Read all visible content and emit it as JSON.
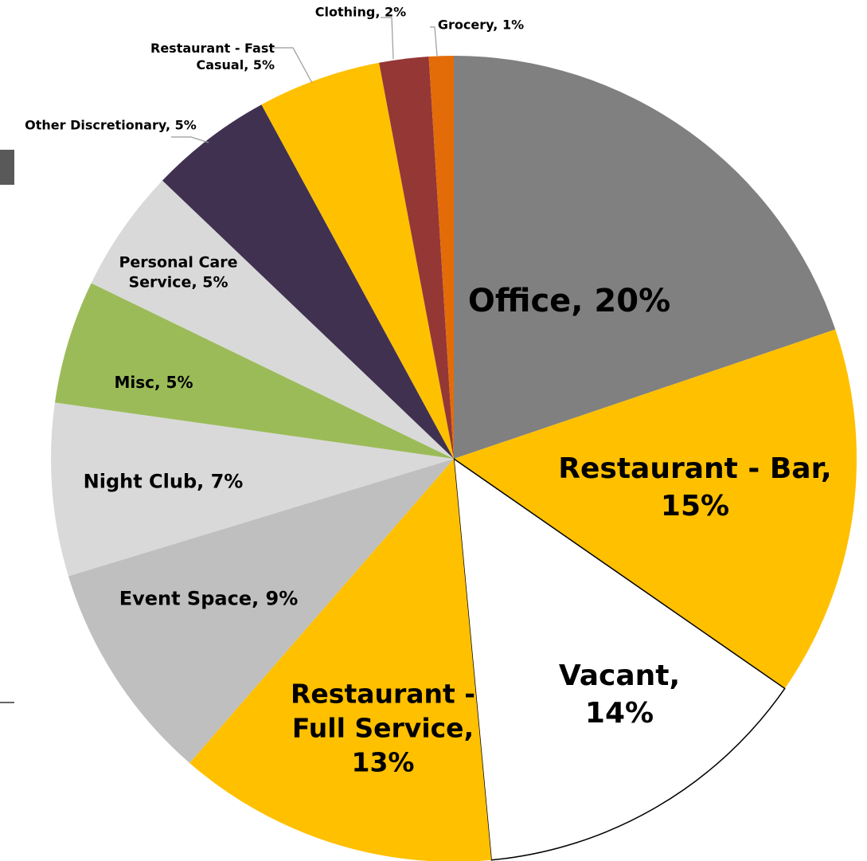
{
  "chart_data": {
    "type": "pie",
    "categories": [
      "Office",
      "Restaurant - Bar",
      "Vacant",
      "Restaurant - Full Service",
      "Event Space",
      "Night Club",
      "Misc",
      "Personal Care Service",
      "Other Discretionary",
      "Restaurant - Fast Casual",
      "Clothing",
      "Grocery"
    ],
    "values": [
      20,
      15,
      14,
      13,
      9,
      7,
      5,
      5,
      5,
      5,
      2,
      1
    ],
    "value_labels": [
      "Office, 20%",
      "Restaurant - Bar, 15%",
      "Vacant, 14%",
      "Restaurant - Full Service, 13%",
      "Event Space, 9%",
      "Night Club, 7%",
      "Misc, 5%",
      "Personal Care Service, 5%",
      "Other Discretionary, 5%",
      "Restaurant - Fast Casual, 5%",
      "Clothing, 2%",
      "Grocery, 1%"
    ],
    "colors": [
      "#808080",
      "#FFC000",
      "#FFFFFF",
      "#FFC000",
      "#BFBFBF",
      "#D9D9D9",
      "#9BBB59",
      "#D9D9D9",
      "#403151",
      "#FFC000",
      "#953735",
      "#E36C09"
    ]
  }
}
